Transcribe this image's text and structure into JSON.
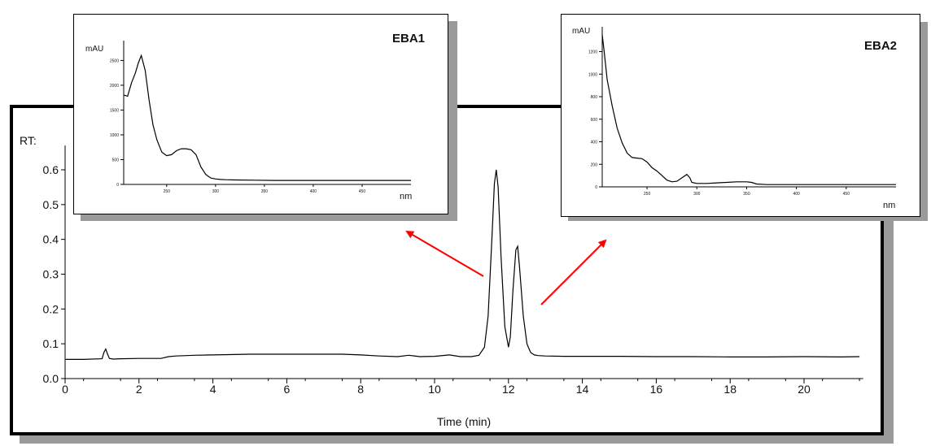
{
  "chart_data": [
    {
      "id": "main",
      "type": "line",
      "ylabel": "RT:",
      "xlabel": "Time (min)",
      "x_ticks": [
        "0",
        "2",
        "4",
        "6",
        "8",
        "10",
        "12",
        "14",
        "16",
        "18",
        "20"
      ],
      "y_ticks": [
        "0.0",
        "0.1",
        "0.2",
        "0.3",
        "0.4",
        "0.5",
        "0.6"
      ],
      "xlim": [
        0,
        21.6
      ],
      "ylim": [
        0,
        0.67
      ],
      "series": [
        {
          "x": [
            0,
            0.5,
            1.0,
            1.05,
            1.1,
            1.15,
            1.2,
            1.3,
            1.5,
            2,
            2.6,
            2.8,
            3,
            3.5,
            4,
            5,
            6,
            7,
            7.5,
            8,
            8.5,
            9,
            9.3,
            9.6,
            10,
            10.4,
            10.7,
            11,
            11.2,
            11.35,
            11.45,
            11.55,
            11.62,
            11.67,
            11.72,
            11.8,
            11.9,
            12.0,
            12.05,
            12.12,
            12.2,
            12.25,
            12.3,
            12.4,
            12.5,
            12.6,
            12.7,
            12.8,
            13,
            13.5,
            14,
            15,
            16,
            17,
            18,
            19,
            20,
            21,
            21.5
          ],
          "y": [
            0.055,
            0.055,
            0.057,
            0.075,
            0.085,
            0.07,
            0.058,
            0.056,
            0.057,
            0.058,
            0.058,
            0.063,
            0.065,
            0.067,
            0.068,
            0.07,
            0.07,
            0.07,
            0.07,
            0.068,
            0.065,
            0.063,
            0.067,
            0.063,
            0.064,
            0.068,
            0.063,
            0.063,
            0.067,
            0.09,
            0.18,
            0.4,
            0.56,
            0.6,
            0.55,
            0.35,
            0.15,
            0.09,
            0.12,
            0.25,
            0.37,
            0.38,
            0.32,
            0.18,
            0.1,
            0.075,
            0.068,
            0.066,
            0.065,
            0.064,
            0.064,
            0.064,
            0.063,
            0.063,
            0.062,
            0.062,
            0.063,
            0.062,
            0.063
          ]
        }
      ]
    },
    {
      "id": "EBA1",
      "type": "line",
      "title": "EBA1",
      "ylabel": "mAU",
      "xlabel": "nm",
      "y_ticks": [
        "2500",
        "2000",
        "1500",
        "1000",
        "500",
        "0"
      ],
      "y_tick_values": [
        2500,
        2000,
        1500,
        1000,
        500,
        0
      ],
      "x_ticks": [
        "250",
        "300",
        "350",
        "400",
        "450"
      ],
      "x_tick_values": [
        250,
        300,
        350,
        400,
        450
      ],
      "xlim": [
        206,
        500
      ],
      "ylim": [
        0,
        2900
      ],
      "series": [
        {
          "x": [
            206,
            210,
            214,
            218,
            221,
            224,
            228,
            232,
            236,
            240,
            245,
            250,
            255,
            260,
            265,
            270,
            275,
            280,
            285,
            290,
            295,
            300,
            305,
            310,
            320,
            340,
            360,
            380,
            400,
            420,
            440,
            460,
            480,
            500
          ],
          "y": [
            1800,
            1780,
            2050,
            2250,
            2450,
            2600,
            2300,
            1700,
            1200,
            900,
            650,
            580,
            600,
            680,
            720,
            720,
            700,
            600,
            350,
            200,
            130,
            110,
            100,
            95,
            90,
            85,
            80,
            80,
            80,
            80,
            80,
            80,
            80,
            80
          ]
        }
      ]
    },
    {
      "id": "EBA2",
      "type": "line",
      "title": "EBA2",
      "ylabel": "mAU",
      "xlabel": "nm",
      "y_ticks": [
        "1200",
        "1000",
        "800",
        "600",
        "400",
        "200",
        "0"
      ],
      "y_tick_values": [
        1200,
        1000,
        800,
        600,
        400,
        200,
        0
      ],
      "x_ticks": [
        "250",
        "300",
        "350",
        "400",
        "450"
      ],
      "x_tick_values": [
        250,
        300,
        350,
        400,
        450
      ],
      "xlim": [
        205,
        500
      ],
      "ylim": [
        0,
        1420
      ],
      "series": [
        {
          "x": [
            205,
            207,
            210,
            215,
            220,
            225,
            230,
            235,
            240,
            245,
            250,
            255,
            260,
            265,
            270,
            275,
            280,
            285,
            290,
            293,
            295,
            300,
            310,
            320,
            330,
            340,
            350,
            355,
            360,
            370,
            380,
            400,
            420,
            440,
            460,
            480,
            500
          ],
          "y": [
            1350,
            1200,
            950,
            720,
            520,
            390,
            300,
            260,
            255,
            250,
            220,
            170,
            140,
            100,
            60,
            45,
            50,
            80,
            110,
            80,
            40,
            30,
            30,
            35,
            40,
            45,
            45,
            40,
            25,
            20,
            20,
            20,
            20,
            20,
            20,
            20,
            20
          ]
        }
      ]
    }
  ]
}
